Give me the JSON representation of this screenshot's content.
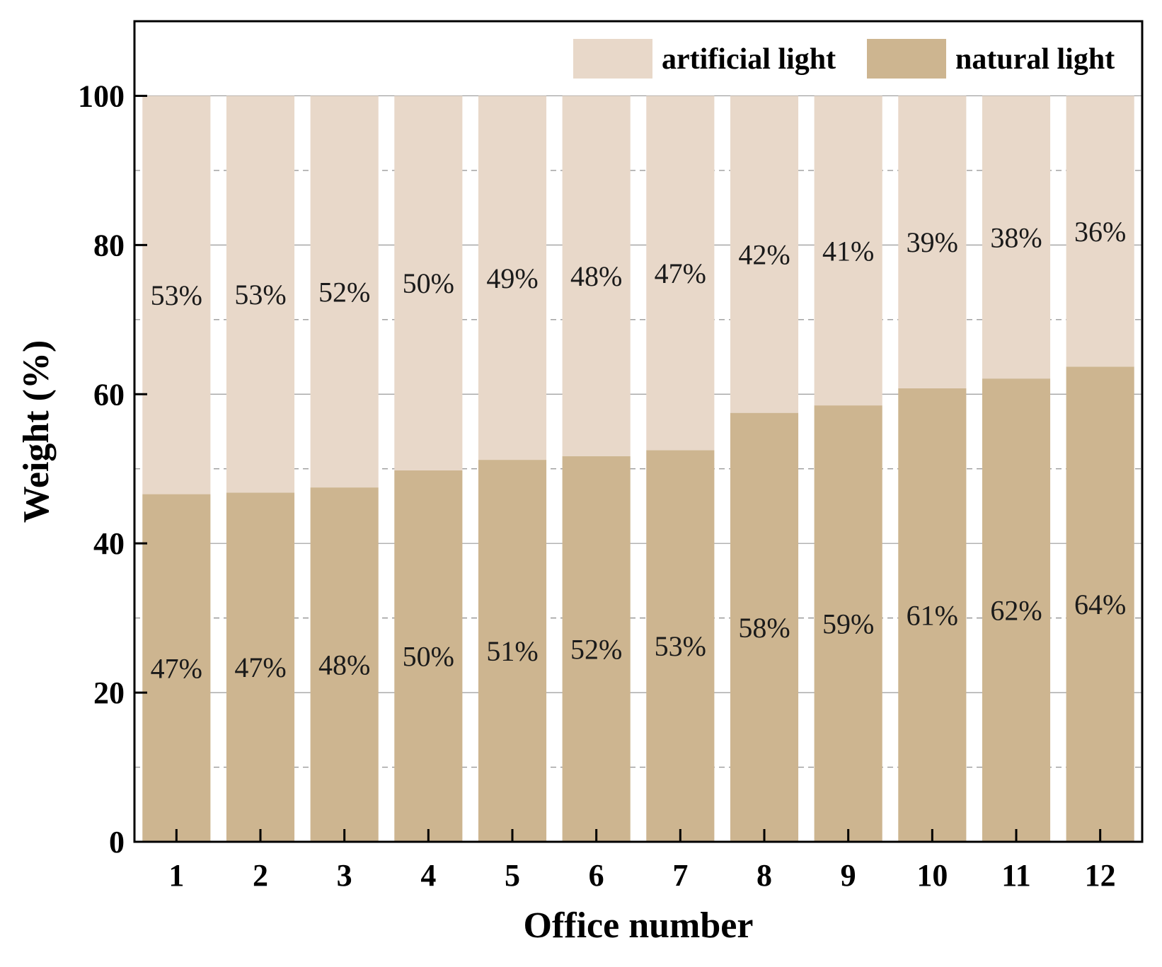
{
  "colors": {
    "natural": "#cdb590",
    "artificial": "#e8d8c9",
    "grid": "#9a9a9a",
    "axis": "#000000"
  },
  "chart_data": {
    "type": "bar",
    "stacked": true,
    "xlabel": "Office number",
    "ylabel": "Weight (%)",
    "ylim": [
      0,
      110
    ],
    "yticks": [
      0,
      20,
      40,
      60,
      80,
      100
    ],
    "grid": true,
    "legend_position": "top-right",
    "categories": [
      "1",
      "2",
      "3",
      "4",
      "5",
      "6",
      "7",
      "8",
      "9",
      "10",
      "11",
      "12"
    ],
    "series": [
      {
        "name": "natural light",
        "values": [
          46.6,
          46.8,
          47.5,
          49.8,
          51.2,
          51.7,
          52.5,
          57.5,
          58.5,
          60.8,
          62.1,
          63.7
        ],
        "labels": [
          "47%",
          "47%",
          "48%",
          "50%",
          "51%",
          "52%",
          "53%",
          "58%",
          "59%",
          "61%",
          "62%",
          "64%"
        ]
      },
      {
        "name": "artificial light",
        "values": [
          53.4,
          53.2,
          52.5,
          50.2,
          48.8,
          48.3,
          47.5,
          42.5,
          41.5,
          39.2,
          37.9,
          36.3
        ],
        "labels": [
          "53%",
          "53%",
          "52%",
          "50%",
          "49%",
          "48%",
          "47%",
          "42%",
          "41%",
          "39%",
          "38%",
          "36%"
        ]
      }
    ]
  }
}
